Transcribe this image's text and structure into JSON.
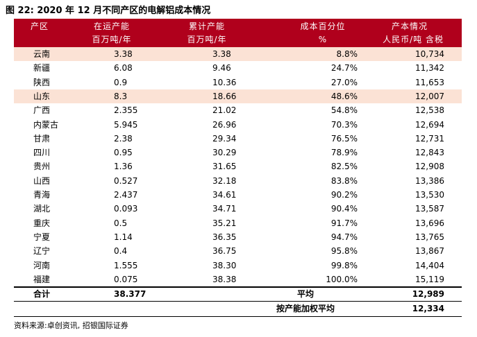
{
  "title": "图 22: 2020 年 12 月不同产区的电解铝成本情况",
  "table": {
    "header": [
      [
        "产区"
      ],
      [
        "在运产能",
        "百万吨/年"
      ],
      [
        "累计产能",
        "百万吨/年"
      ],
      [
        "成本百分位",
        "%"
      ],
      [
        "产本情况",
        "人民币/吨 含税"
      ]
    ],
    "rows": [
      [
        "云南",
        "3.38",
        "3.38",
        "8.8%",
        "10,734"
      ],
      [
        "新疆",
        "6.08",
        "9.46",
        "24.7%",
        "11,342"
      ],
      [
        "陕西",
        "0.9",
        "10.36",
        "27.0%",
        "11,653"
      ],
      [
        "山东",
        "8.3",
        "18.66",
        "48.6%",
        "12,007"
      ],
      [
        "广西",
        "2.355",
        "21.02",
        "54.8%",
        "12,538"
      ],
      [
        "内蒙古",
        "5.945",
        "26.96",
        "70.3%",
        "12,694"
      ],
      [
        "甘肃",
        "2.38",
        "29.34",
        "76.5%",
        "12,731"
      ],
      [
        "四川",
        "0.95",
        "30.29",
        "78.9%",
        "12,843"
      ],
      [
        "贵州",
        "1.36",
        "31.65",
        "82.5%",
        "12,908"
      ],
      [
        "山西",
        "0.527",
        "32.18",
        "83.8%",
        "13,386"
      ],
      [
        "青海",
        "2.437",
        "34.61",
        "90.2%",
        "13,530"
      ],
      [
        "湖北",
        "0.093",
        "34.71",
        "90.4%",
        "13,587"
      ],
      [
        "重庆",
        "0.5",
        "35.21",
        "91.7%",
        "13,696"
      ],
      [
        "宁夏",
        "1.14",
        "36.35",
        "94.7%",
        "13,765"
      ],
      [
        "辽宁",
        "0.4",
        "36.75",
        "95.8%",
        "13,867"
      ],
      [
        "河南",
        "1.555",
        "38.30",
        "99.8%",
        "14,404"
      ],
      [
        "福建",
        "0.075",
        "38.38",
        "100.0%",
        "15,119"
      ]
    ],
    "total": {
      "label": "合计",
      "capacity": "38.377",
      "average_label": "平均",
      "average": "12,989"
    },
    "weighted": {
      "label": "按产能加权平均",
      "value": "12,334"
    }
  },
  "source": "资料来源:卓创资讯, 招银国际证券"
}
